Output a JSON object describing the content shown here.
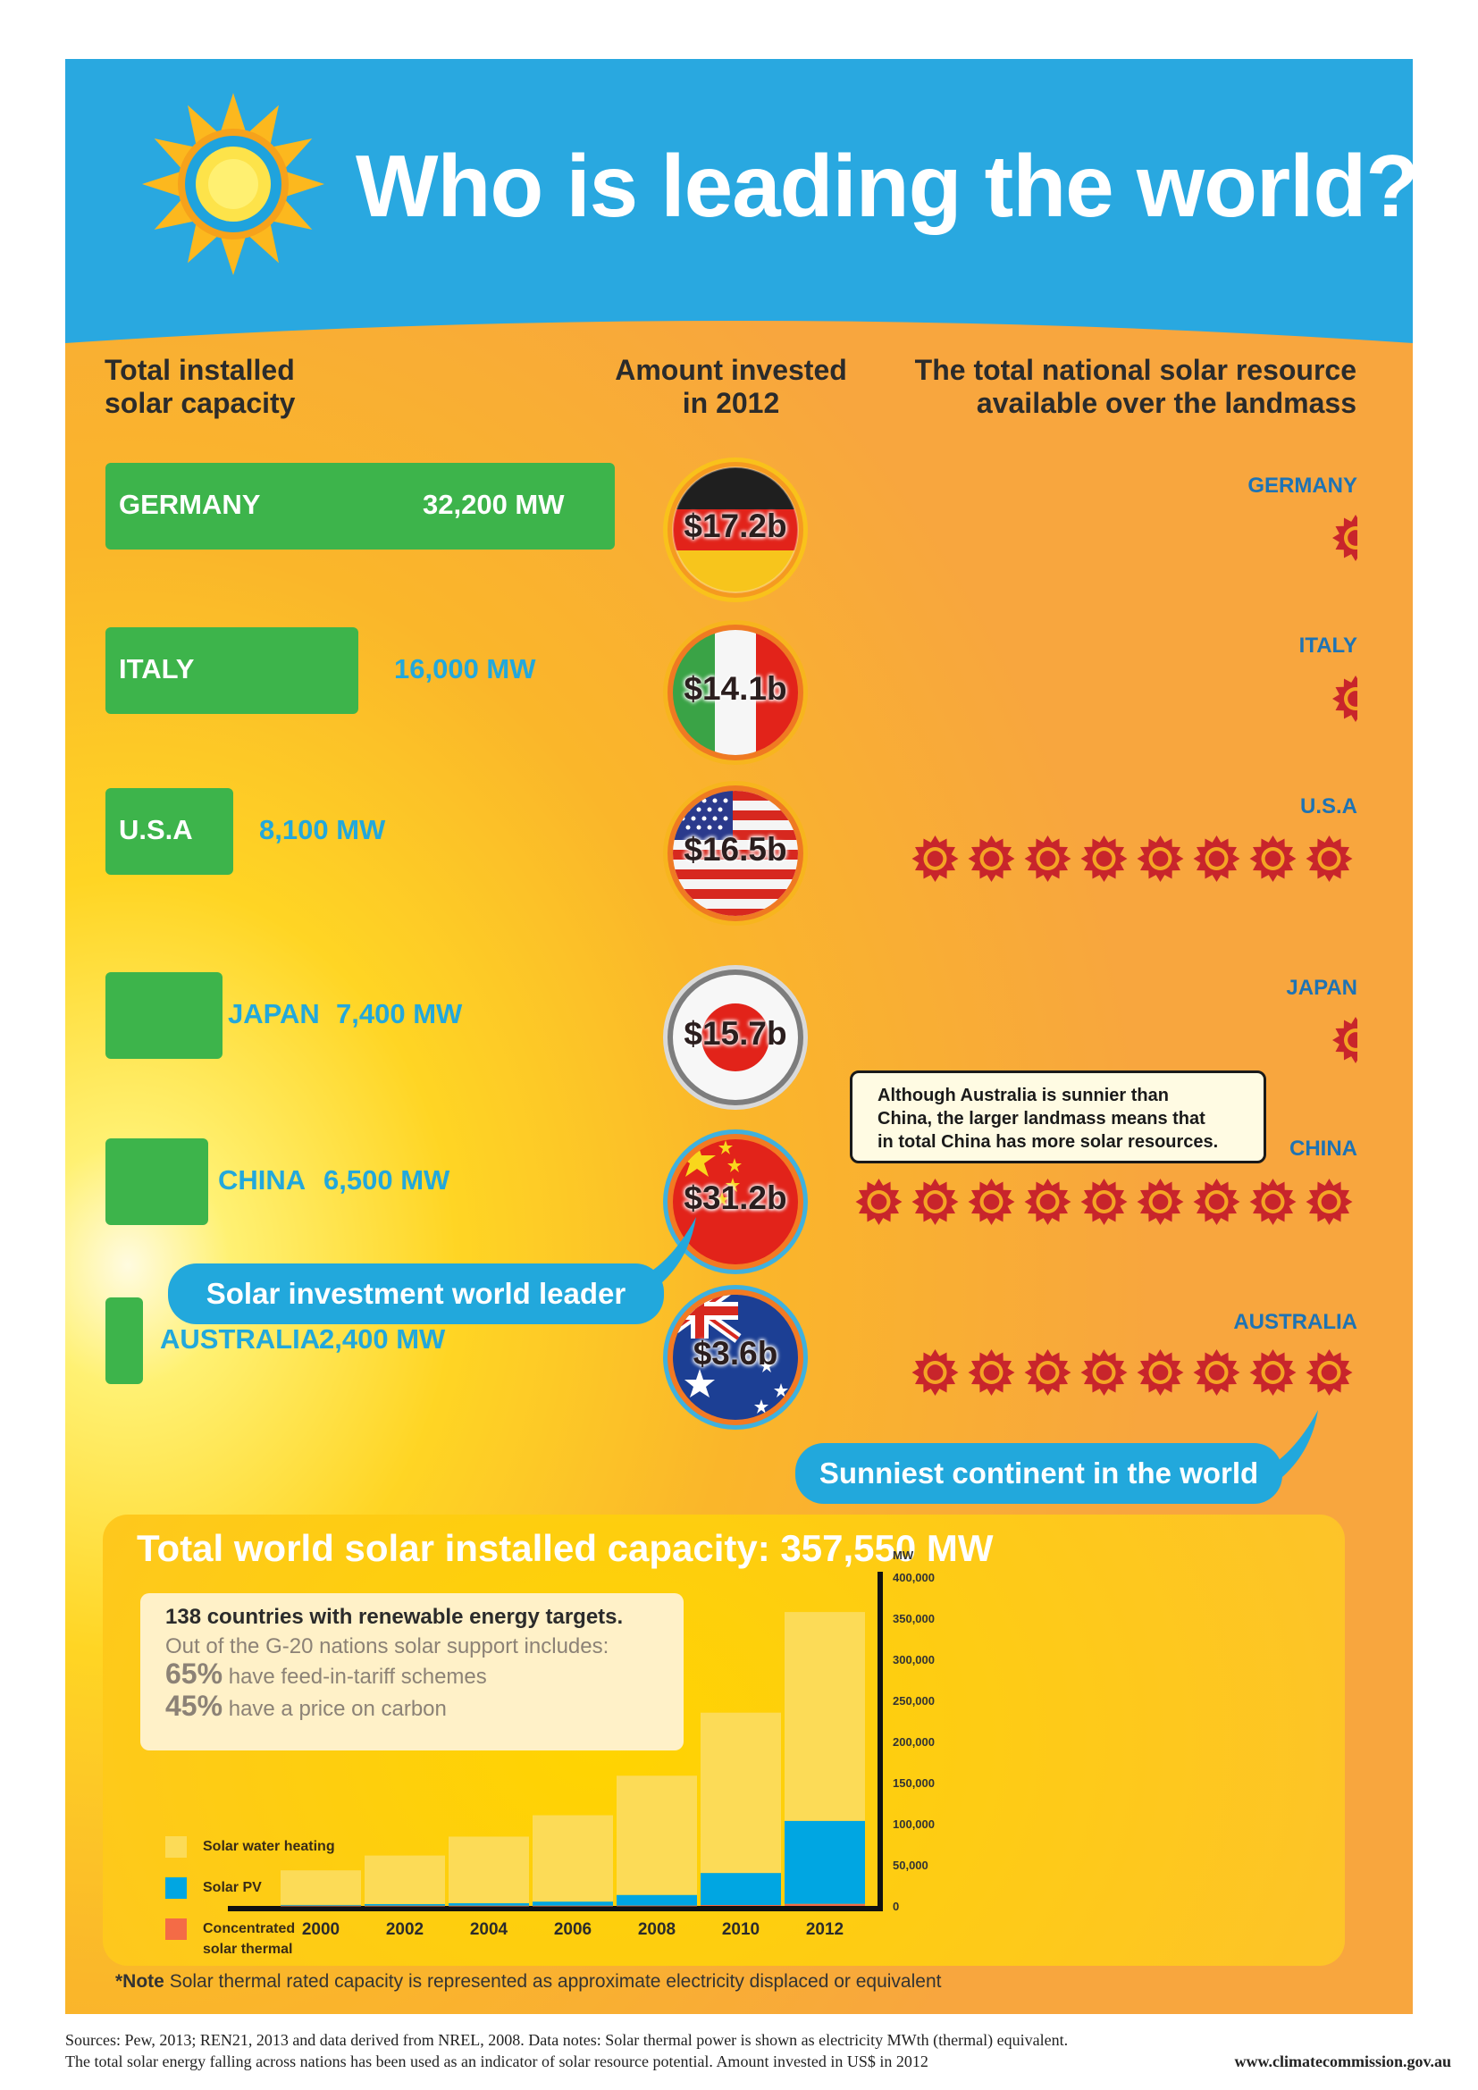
{
  "title": "Who is leading the world?",
  "headers": {
    "capacity": [
      "Total installed",
      "solar capacity"
    ],
    "invested": [
      "Amount invested",
      "in 2012"
    ],
    "resource": [
      "The total national solar resource",
      "available over the landmass"
    ]
  },
  "countries": [
    {
      "name": "GERMANY",
      "mw_label": "32,200 MW",
      "mw": 32200,
      "investment": "$17.2b",
      "resource_label": "GERMANY",
      "resource_suns": 0.5
    },
    {
      "name": "ITALY",
      "mw_label": "16,000 MW",
      "mw": 16000,
      "investment": "$14.1b",
      "resource_label": "ITALY",
      "resource_suns": 0.5
    },
    {
      "name": "U.S.A",
      "mw_label": "8,100 MW",
      "mw": 8100,
      "investment": "$16.5b",
      "resource_label": "U.S.A",
      "resource_suns": 8
    },
    {
      "name": "JAPAN",
      "mw_label": "7,400 MW",
      "mw": 7400,
      "investment": "$15.7b",
      "resource_label": "JAPAN",
      "resource_suns": 0.5
    },
    {
      "name": "CHINA",
      "mw_label": "6,500 MW",
      "mw": 6500,
      "investment": "$31.2b",
      "resource_label": "CHINA",
      "resource_suns": 9
    },
    {
      "name": "AUSTRALIA",
      "mw_label": "2,400 MW",
      "mw": 2400,
      "investment": "$3.6b",
      "resource_label": "AUSTRALIA",
      "resource_suns": 8
    }
  ],
  "callouts": {
    "investment_leader": "Solar investment world leader",
    "sunniest": "Sunniest continent in the world",
    "australia_note": [
      "Although Australia is sunnier than",
      "China, the larger landmass means that",
      "in total China has more solar resources."
    ]
  },
  "summary": {
    "title": "Total world solar installed capacity: 357,550 MW",
    "targets": "138 countries with renewable energy targets.",
    "g20_intro": "Out of the G-20 nations solar support includes:",
    "fit_pct": "65%",
    "fit_text": "have feed-in-tariff schemes",
    "carbon_pct": "45%",
    "carbon_text": "have a price on carbon"
  },
  "legend": [
    {
      "label": [
        "Solar water heating"
      ],
      "color": "#fcdb57"
    },
    {
      "label": [
        "Solar PV"
      ],
      "color": "#00a6e2"
    },
    {
      "label": [
        "Concentrated",
        "solar thermal"
      ],
      "color": "#f46b46"
    }
  ],
  "chart_data": {
    "type": "bar",
    "stacked": true,
    "categories": [
      "2000",
      "2002",
      "2004",
      "2006",
      "2008",
      "2010",
      "2012"
    ],
    "series": [
      {
        "name": "Concentrated solar thermal",
        "color": "#f46b46",
        "values": [
          300,
          300,
          300,
          300,
          400,
          1100,
          2500
        ]
      },
      {
        "name": "Solar PV",
        "color": "#00a6e2",
        "values": [
          1000,
          2000,
          3000,
          5000,
          13000,
          39000,
          101000
        ]
      },
      {
        "name": "Solar water heating",
        "color": "#fcdb57",
        "values": [
          42000,
          59000,
          81000,
          105000,
          145000,
          195000,
          254000
        ]
      }
    ],
    "ylabel": "MW",
    "ylim": [
      0,
      400000
    ],
    "yticks": [
      "0",
      "50,000",
      "100,000",
      "150,000",
      "200,000",
      "250,000",
      "300,000",
      "350,000",
      "400,000"
    ],
    "total_label": "357,550 MW"
  },
  "footnote": {
    "bold": "*Note",
    "text": "Solar thermal rated capacity is represented as approximate electricity displaced or equivalent"
  },
  "sources": [
    "Sources: Pew, 2013; REN21, 2013 and data derived from NREL, 2008. Data notes: Solar thermal power is shown as electricity MWth (thermal) equivalent.",
    "The total solar energy falling across nations has been used as an indicator of solar resource potential. Amount invested in US$ in 2012"
  ],
  "website": "www.climatecommission.gov.au"
}
